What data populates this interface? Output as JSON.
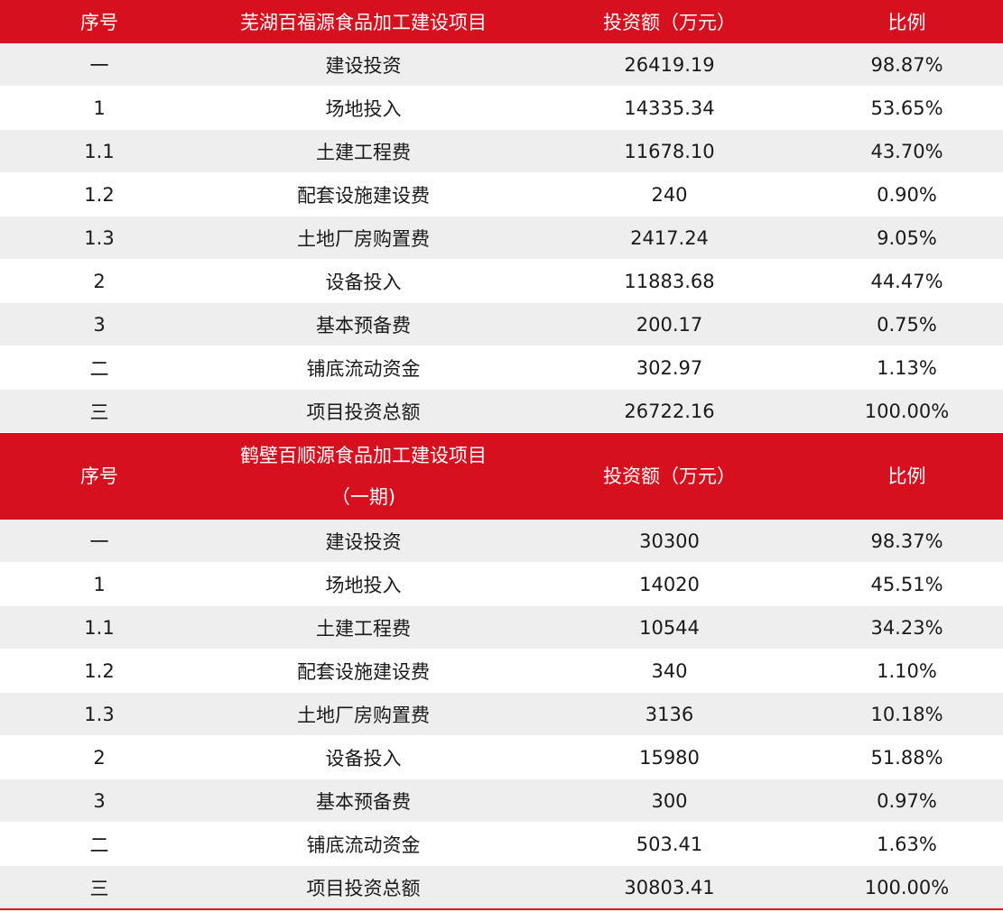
{
  "headers": {
    "col_no": "序号",
    "col_amount": "投资额（万元）",
    "col_ratio": "比例"
  },
  "sections": [
    {
      "title": "芜湖百福源食品加工建设项目",
      "title_line2": "",
      "rows": [
        {
          "no": "一",
          "name": "建设投资",
          "amount": "26419.19",
          "ratio": "98.87%"
        },
        {
          "no": "1",
          "name": "场地投入",
          "amount": "14335.34",
          "ratio": "53.65%"
        },
        {
          "no": "1.1",
          "name": "土建工程费",
          "amount": "11678.10",
          "ratio": "43.70%"
        },
        {
          "no": "1.2",
          "name": "配套设施建设费",
          "amount": "240",
          "ratio": "0.90%"
        },
        {
          "no": "1.3",
          "name": "土地厂房购置费",
          "amount": "2417.24",
          "ratio": "9.05%"
        },
        {
          "no": "2",
          "name": "设备投入",
          "amount": "11883.68",
          "ratio": "44.47%"
        },
        {
          "no": "3",
          "name": "基本预备费",
          "amount": "200.17",
          "ratio": "0.75%"
        },
        {
          "no": "二",
          "name": "铺底流动资金",
          "amount": "302.97",
          "ratio": "1.13%"
        },
        {
          "no": "三",
          "name": "项目投资总额",
          "amount": "26722.16",
          "ratio": "100.00%"
        }
      ]
    },
    {
      "title": "鹤壁百顺源食品加工建设项目",
      "title_line2": "（一期)",
      "rows": [
        {
          "no": "一",
          "name": "建设投资",
          "amount": "30300",
          "ratio": "98.37%"
        },
        {
          "no": "1",
          "name": "场地投入",
          "amount": "14020",
          "ratio": "45.51%"
        },
        {
          "no": "1.1",
          "name": "土建工程费",
          "amount": "10544",
          "ratio": "34.23%"
        },
        {
          "no": "1.2",
          "name": "配套设施建设费",
          "amount": "340",
          "ratio": "1.10%"
        },
        {
          "no": "1.3",
          "name": "土地厂房购置费",
          "amount": "3136",
          "ratio": "10.18%"
        },
        {
          "no": "2",
          "name": "设备投入",
          "amount": "15980",
          "ratio": "51.88%"
        },
        {
          "no": "3",
          "name": "基本预备费",
          "amount": "300",
          "ratio": "0.97%"
        },
        {
          "no": "二",
          "name": "铺底流动资金",
          "amount": "503.41",
          "ratio": "1.63%"
        },
        {
          "no": "三",
          "name": "项目投资总额",
          "amount": "30803.41",
          "ratio": "100.00%"
        }
      ]
    }
  ],
  "colors": {
    "header_bg": "#d7101f",
    "header_text": "#ffffff",
    "stripe_bg": "#eeeeee"
  }
}
